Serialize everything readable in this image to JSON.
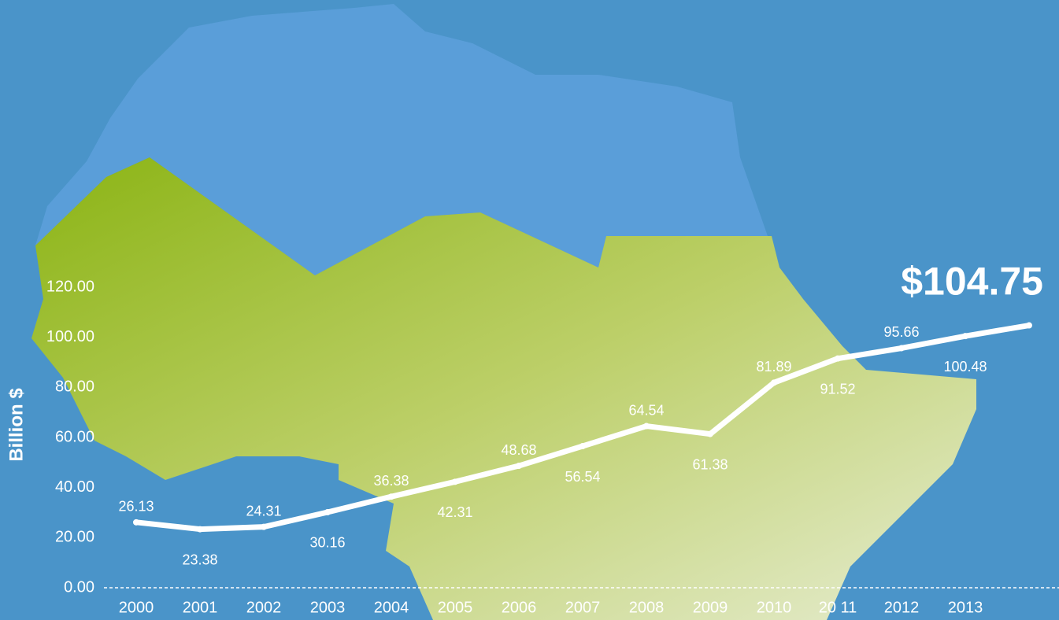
{
  "chart_data": {
    "type": "line",
    "y_label": "Billion $",
    "categories": [
      "2000",
      "2001",
      "2002",
      "2003",
      "2004",
      "2005",
      "2006",
      "2007",
      "2008",
      "2009",
      "2010",
      "20 11",
      "2012",
      "2013",
      null
    ],
    "values": [
      26.13,
      23.38,
      24.31,
      30.16,
      36.38,
      42.31,
      48.68,
      56.54,
      64.54,
      61.38,
      81.89,
      91.52,
      95.66,
      100.48,
      104.75
    ],
    "value_labels": [
      "26.13",
      "23.38",
      "24.31",
      "30.16",
      "36.38",
      "42.31",
      "48.68",
      "56.54",
      "64.54",
      "61.38",
      "81.89",
      "91.52",
      "95.66",
      "100.48",
      "$104.75"
    ],
    "color": "#ffffff",
    "ylim": [
      0,
      120
    ],
    "yticks": [
      {
        "value": 0,
        "label": "0.00"
      },
      {
        "value": 20,
        "label": "20.00"
      },
      {
        "value": 40,
        "label": "40.00"
      },
      {
        "value": 60,
        "label": "60.00"
      },
      {
        "value": 80,
        "label": "80.00"
      },
      {
        "value": 100,
        "label": "100.00"
      },
      {
        "value": 120,
        "label": "120.00"
      }
    ]
  }
}
